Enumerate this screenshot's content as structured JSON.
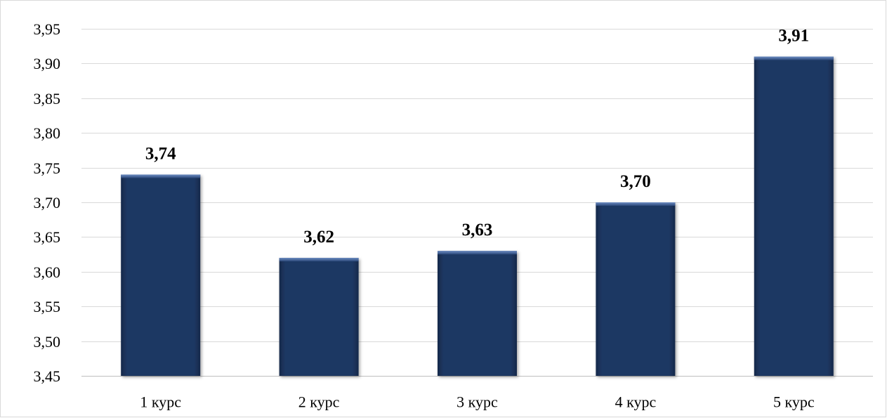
{
  "chart_data": {
    "type": "bar",
    "title": "",
    "xlabel": "",
    "ylabel": "",
    "categories": [
      "1 курс",
      "2 курс",
      "3 курс",
      "4 курс",
      "5 курс"
    ],
    "values": [
      3.74,
      3.62,
      3.63,
      3.7,
      3.91
    ],
    "data_labels": [
      "3,74",
      "3,62",
      "3,63",
      "3,70",
      "3,91"
    ],
    "ylim": [
      3.45,
      3.95
    ],
    "yticks": [
      3.45,
      3.5,
      3.55,
      3.6,
      3.65,
      3.7,
      3.75,
      3.8,
      3.85,
      3.9,
      3.95
    ],
    "ytick_labels": [
      "3,45",
      "3,50",
      "3,55",
      "3,60",
      "3,65",
      "3,70",
      "3,75",
      "3,80",
      "3,85",
      "3,90",
      "3,95"
    ],
    "grid": true,
    "legend": "none",
    "colors": {
      "bar": "#1f3864",
      "bar_highlight": "#3a5a92",
      "grid": "#d9d9d9",
      "text": "#000000"
    }
  }
}
